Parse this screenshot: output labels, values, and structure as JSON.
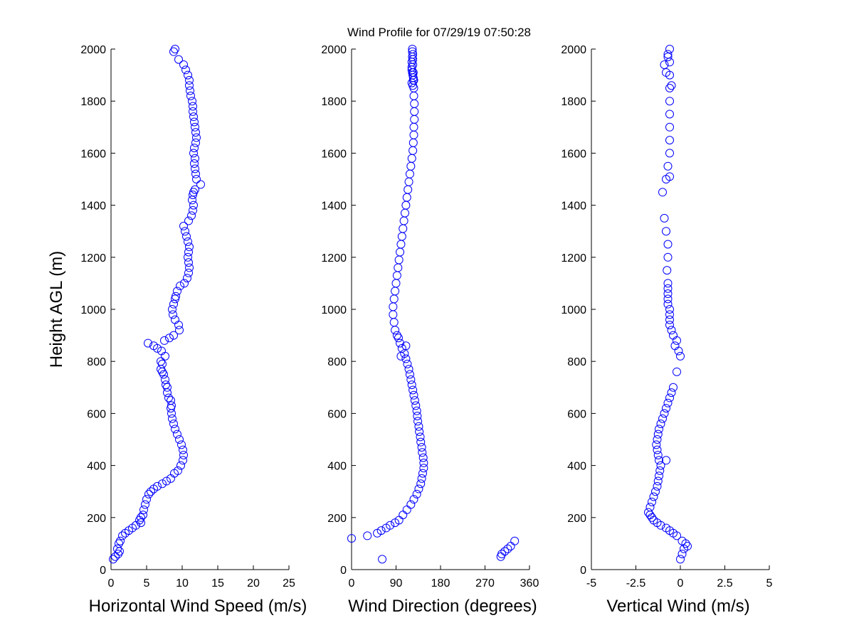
{
  "figure": {
    "title": "Wind Profile for  07/29/19 07:50:28",
    "ylabel": "Height AGL (m)",
    "marker_color": "#0000ff"
  },
  "chart_data": [
    {
      "type": "scatter",
      "xlabel": "Horizontal Wind Speed (m/s)",
      "ylabel": "Height AGL (m)",
      "xlim": [
        0,
        25
      ],
      "ylim": [
        0,
        2000
      ],
      "xticks": [
        "0",
        "5",
        "10",
        "15",
        "20",
        "25"
      ],
      "yticks": [
        "0",
        "200",
        "400",
        "600",
        "800",
        "1000",
        "1200",
        "1400",
        "1600",
        "1800",
        "2000"
      ],
      "grid": false,
      "marker": "open-circle",
      "x": [
        0.3,
        0.6,
        1.0,
        1.2,
        0.9,
        1.1,
        1.3,
        1.6,
        2.0,
        2.5,
        3.0,
        3.5,
        4.2,
        4.0,
        4.2,
        4.5,
        4.6,
        4.8,
        5.0,
        5.3,
        5.6,
        6.0,
        6.5,
        7.2,
        7.8,
        8.4,
        8.9,
        9.4,
        9.8,
        10.1,
        10.2,
        10.1,
        9.9,
        9.6,
        9.3,
        9.0,
        8.8,
        8.6,
        8.5,
        8.4,
        8.5,
        8.4,
        8.1,
        7.9,
        7.9,
        7.7,
        7.6,
        7.4,
        7.2,
        7.0,
        7.2,
        7.0,
        7.6,
        7.1,
        6.5,
        6.0,
        5.2,
        7.5,
        8.2,
        8.8,
        9.6,
        9.5,
        9.0,
        8.7,
        8.6,
        8.8,
        9.0,
        9.1,
        9.3,
        9.7,
        10.3,
        10.7,
        10.9,
        11.0,
        10.9,
        10.8,
        10.9,
        11.0,
        10.8,
        10.6,
        10.4,
        10.2,
        10.9,
        11.3,
        11.5,
        11.6,
        11.4,
        11.5,
        11.6,
        11.8,
        12.6,
        12.0,
        11.9,
        11.8,
        11.7,
        11.8,
        11.6,
        11.7,
        11.9,
        12.0,
        11.9,
        11.8,
        11.7,
        11.6,
        11.5,
        11.5,
        11.4,
        11.2,
        11.1,
        11.0,
        11.0,
        10.8,
        10.5,
        10.2,
        9.5,
        8.8,
        9.0
      ],
      "y": [
        40,
        50,
        60,
        70,
        80,
        100,
        110,
        130,
        140,
        150,
        160,
        170,
        180,
        190,
        200,
        210,
        230,
        250,
        270,
        290,
        300,
        310,
        320,
        330,
        340,
        350,
        370,
        380,
        400,
        420,
        440,
        460,
        480,
        500,
        520,
        540,
        560,
        580,
        600,
        620,
        630,
        650,
        660,
        680,
        700,
        710,
        730,
        750,
        760,
        770,
        790,
        800,
        820,
        840,
        850,
        860,
        870,
        880,
        890,
        900,
        920,
        940,
        960,
        980,
        1000,
        1020,
        1040,
        1050,
        1070,
        1090,
        1100,
        1120,
        1140,
        1160,
        1180,
        1200,
        1220,
        1240,
        1260,
        1280,
        1300,
        1320,
        1340,
        1360,
        1380,
        1400,
        1420,
        1440,
        1450,
        1460,
        1480,
        1500,
        1520,
        1540,
        1560,
        1580,
        1600,
        1620,
        1640,
        1660,
        1680,
        1700,
        1720,
        1740,
        1760,
        1780,
        1800,
        1820,
        1840,
        1860,
        1880,
        1900,
        1920,
        1940,
        1960,
        1990,
        2000
      ]
    },
    {
      "type": "scatter",
      "xlabel": "Wind Direction (degrees)",
      "ylabel": "Height AGL (m)",
      "xlim": [
        0,
        360
      ],
      "ylim": [
        0,
        2000
      ],
      "xticks": [
        "0",
        "90",
        "180",
        "270",
        "360"
      ],
      "yticks": [
        "0",
        "200",
        "400",
        "600",
        "800",
        "1000",
        "1200",
        "1400",
        "1600",
        "1800",
        "2000"
      ],
      "grid": false,
      "marker": "open-circle",
      "x": [
        62,
        0,
        32,
        52,
        60,
        70,
        78,
        88,
        96,
        104,
        112,
        120,
        126,
        132,
        136,
        140,
        142,
        144,
        146,
        146,
        145,
        143,
        142,
        140,
        139,
        137,
        136,
        134,
        133,
        132,
        130,
        128,
        126,
        124,
        122,
        120,
        118,
        116,
        113,
        110,
        107,
        102,
        98,
        95,
        110,
        100,
        92,
        88,
        86,
        84,
        84,
        86,
        88,
        90,
        92,
        94,
        96,
        98,
        100,
        102,
        104,
        106,
        108,
        110,
        112,
        114,
        116,
        118,
        120,
        122,
        124,
        125,
        126,
        126,
        127,
        127,
        127,
        126,
        126,
        125,
        125,
        124,
        124,
        124,
        123,
        123,
        123,
        122,
        122,
        122,
        123,
        124,
        125,
        126,
        122,
        124,
        302,
        304,
        310,
        316,
        322,
        330
      ],
      "y": [
        40,
        120,
        130,
        140,
        150,
        160,
        170,
        180,
        190,
        210,
        230,
        250,
        270,
        290,
        310,
        330,
        350,
        370,
        390,
        410,
        430,
        450,
        470,
        490,
        510,
        530,
        550,
        570,
        590,
        610,
        630,
        650,
        670,
        690,
        710,
        730,
        750,
        770,
        790,
        810,
        830,
        850,
        870,
        890,
        860,
        820,
        900,
        920,
        950,
        980,
        1010,
        1040,
        1070,
        1100,
        1130,
        1160,
        1190,
        1220,
        1250,
        1280,
        1310,
        1340,
        1370,
        1400,
        1430,
        1460,
        1490,
        1520,
        1550,
        1580,
        1610,
        1640,
        1670,
        1700,
        1730,
        1760,
        1790,
        1820,
        1850,
        1880,
        1910,
        1940,
        1960,
        1980,
        1990,
        2000,
        1970,
        1950,
        1930,
        1920,
        1910,
        1900,
        1890,
        1880,
        1870,
        1860,
        50,
        60,
        70,
        80,
        90,
        110
      ]
    },
    {
      "type": "scatter",
      "xlabel": "Vertical Wind (m/s)",
      "ylabel": "Height AGL (m)",
      "xlim": [
        -5,
        5
      ],
      "ylim": [
        0,
        2000
      ],
      "xticks": [
        "-5",
        "-2.5",
        "0",
        "2.5",
        "5"
      ],
      "yticks": [
        "0",
        "200",
        "400",
        "600",
        "800",
        "1000",
        "1200",
        "1400",
        "1600",
        "1800",
        "2000"
      ],
      "grid": false,
      "marker": "open-circle",
      "x": [
        0.0,
        0.1,
        0.2,
        0.4,
        0.3,
        0.1,
        -0.2,
        -0.4,
        -0.6,
        -0.8,
        -1.1,
        -1.3,
        -1.5,
        -1.6,
        -1.7,
        -1.8,
        -1.7,
        -1.6,
        -1.5,
        -1.4,
        -1.3,
        -1.25,
        -1.2,
        -1.15,
        -1.1,
        -1.2,
        -1.25,
        -1.3,
        -1.35,
        -1.3,
        -1.25,
        -0.8,
        -1.2,
        -1.1,
        -1.0,
        -0.9,
        -0.8,
        -0.7,
        -0.6,
        -0.5,
        -0.4,
        -0.2,
        0.0,
        -0.1,
        -0.3,
        -0.2,
        -0.4,
        -0.5,
        -0.6,
        -0.6,
        -0.6,
        -0.6,
        -0.7,
        -0.7,
        -0.7,
        -0.7,
        -0.7,
        -0.75,
        -0.7,
        -0.7,
        -0.8,
        -0.9,
        -1.0,
        -0.8,
        -0.7,
        -0.6,
        -0.6,
        -0.6,
        -0.6,
        -0.6,
        -0.6,
        -0.6,
        -0.6,
        -0.7,
        -0.9,
        -0.8,
        -0.7,
        -0.6,
        -0.5,
        -0.6
      ],
      "y": [
        40,
        60,
        80,
        90,
        100,
        110,
        130,
        140,
        150,
        160,
        170,
        180,
        190,
        200,
        210,
        220,
        240,
        260,
        280,
        300,
        320,
        340,
        360,
        380,
        400,
        420,
        440,
        460,
        480,
        500,
        520,
        420,
        540,
        560,
        580,
        600,
        620,
        640,
        660,
        680,
        700,
        760,
        820,
        840,
        860,
        880,
        900,
        920,
        940,
        960,
        980,
        1000,
        1020,
        1040,
        1060,
        1080,
        1100,
        1150,
        1200,
        1250,
        1300,
        1350,
        1450,
        1500,
        1550,
        1600,
        1650,
        1700,
        1750,
        1800,
        1850,
        1900,
        1950,
        1980,
        1940,
        1910,
        1970,
        2000,
        1860,
        1510
      ]
    }
  ]
}
